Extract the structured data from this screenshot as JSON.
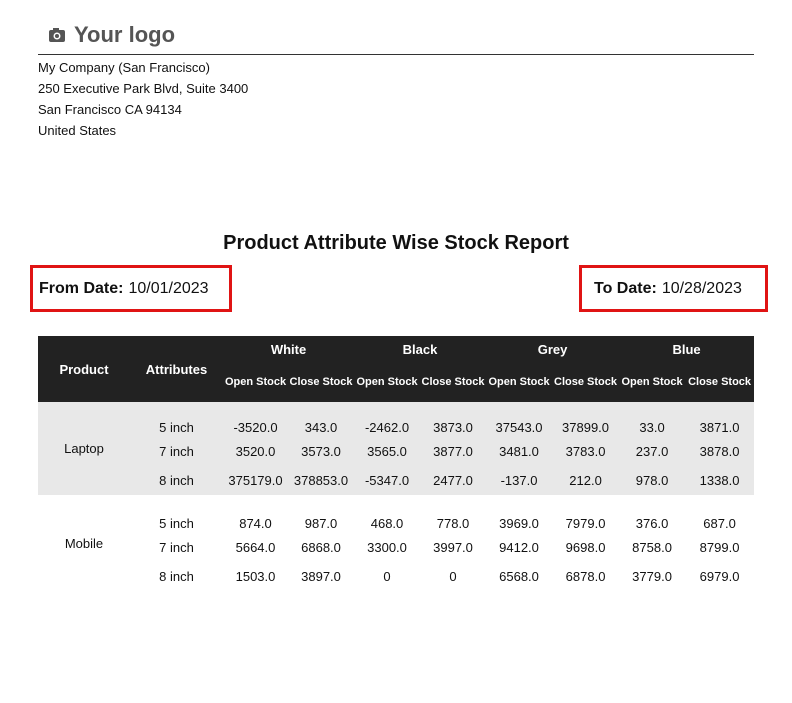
{
  "logo": {
    "text": "Your logo",
    "icon": "camera-icon"
  },
  "company": {
    "name": "My Company (San Francisco)",
    "street": "250 Executive Park Blvd, Suite 3400",
    "city": "San Francisco CA 94134",
    "country": "United States"
  },
  "report": {
    "title": "Product Attribute Wise Stock Report",
    "from_label": "From Date:",
    "from_value": "10/01/2023",
    "to_label": "To Date:",
    "to_value": "10/28/2023"
  },
  "colors": {
    "header_bg": "#222222",
    "highlight_border": "#e01414",
    "band": "#e8e8e8"
  },
  "table": {
    "product_header": "Product",
    "attributes_header": "Attributes",
    "groups": [
      "White",
      "Black",
      "Grey",
      "Blue"
    ],
    "open_label": "Open Stock",
    "close_label": "Close Stock",
    "rows": [
      {
        "product": "Laptop",
        "items": [
          {
            "attr": "5 inch",
            "values": [
              "-3520.0",
              "343.0",
              "-2462.0",
              "3873.0",
              "37543.0",
              "37899.0",
              "33.0",
              "3871.0"
            ]
          },
          {
            "attr": "7 inch",
            "values": [
              "3520.0",
              "3573.0",
              "3565.0",
              "3877.0",
              "3481.0",
              "3783.0",
              "237.0",
              "3878.0"
            ]
          },
          {
            "attr": "8 inch",
            "values": [
              "375179.0",
              "378853.0",
              "-5347.0",
              "2477.0",
              "-137.0",
              "212.0",
              "978.0",
              "1338.0"
            ]
          }
        ]
      },
      {
        "product": "Mobile",
        "items": [
          {
            "attr": "5 inch",
            "values": [
              "874.0",
              "987.0",
              "468.0",
              "778.0",
              "3969.0",
              "7979.0",
              "376.0",
              "687.0"
            ]
          },
          {
            "attr": "7 inch",
            "values": [
              "5664.0",
              "6868.0",
              "3300.0",
              "3997.0",
              "9412.0",
              "9698.0",
              "8758.0",
              "8799.0"
            ]
          },
          {
            "attr": "8 inch",
            "values": [
              "1503.0",
              "3897.0",
              "0",
              "0",
              "6568.0",
              "6878.0",
              "3779.0",
              "6979.0"
            ]
          }
        ]
      }
    ]
  }
}
